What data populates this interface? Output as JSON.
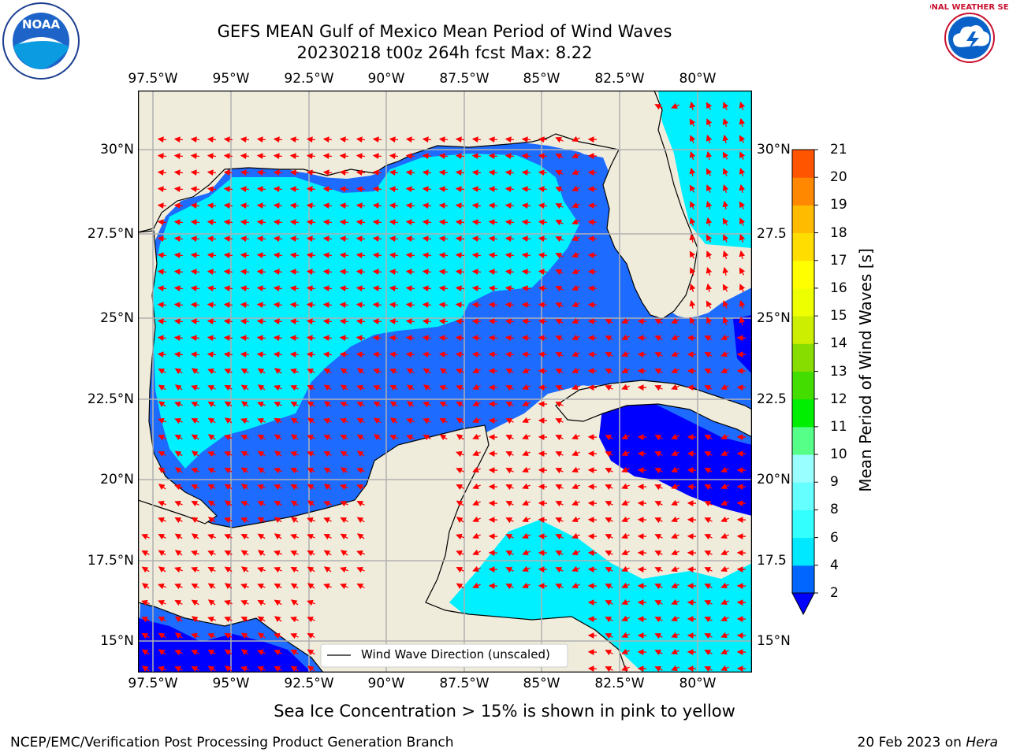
{
  "header": {
    "title_line1": "GEFS MEAN Gulf of Mexico Mean Period of Wind Waves",
    "title_line2": "20230218 t00z 264h fcst   Max: 8.22"
  },
  "logos": {
    "noaa": "NOAA",
    "nws": "NATIONAL WEATHER SERVICE"
  },
  "map": {
    "lon_ticks": [
      "97.5°W",
      "95°W",
      "92.5°W",
      "90°W",
      "87.5°W",
      "85°W",
      "82.5°W",
      "80°W"
    ],
    "lat_ticks": [
      "30°N",
      "27.5°N",
      "25°N",
      "22.5°N",
      "20°N",
      "17.5°N",
      "15°N"
    ],
    "lat_ticks_right": [
      "30°N",
      "27.5",
      "25°N",
      "22.5",
      "20°N",
      "17.5",
      "15°N"
    ],
    "legend_label": "Wind Wave Direction (unscaled)",
    "colors": {
      "land": "#efecdc",
      "grid": "#b0b0b0",
      "arrow": "#ff0000",
      "coast": "#000000"
    }
  },
  "colorbar": {
    "label": "Mean Period of Wind Waves [s]",
    "ticks": [
      "2",
      "4",
      "6",
      "8",
      "9",
      "10",
      "11",
      "12",
      "13",
      "14",
      "15",
      "16",
      "17",
      "18",
      "19",
      "20",
      "21"
    ],
    "colors": [
      "#0066ff",
      "#00e8ff",
      "#33ffff",
      "#66ffff",
      "#99ffff",
      "#55ff88",
      "#00ee00",
      "#44dd00",
      "#88dd00",
      "#ccee00",
      "#eeff00",
      "#ffff00",
      "#ffdd00",
      "#ffbb00",
      "#ff8800",
      "#ff5500",
      "#ff2a00",
      "#ff0000"
    ],
    "under_color": "#0000ff"
  },
  "footer": {
    "note": "Sea Ice Concentration > 15% is shown in pink to yellow",
    "left": "NCEP/EMC/Verification Post Processing Product Generation Branch",
    "right_date": "20 Feb 2023 on",
    "right_host": "Hera"
  }
}
